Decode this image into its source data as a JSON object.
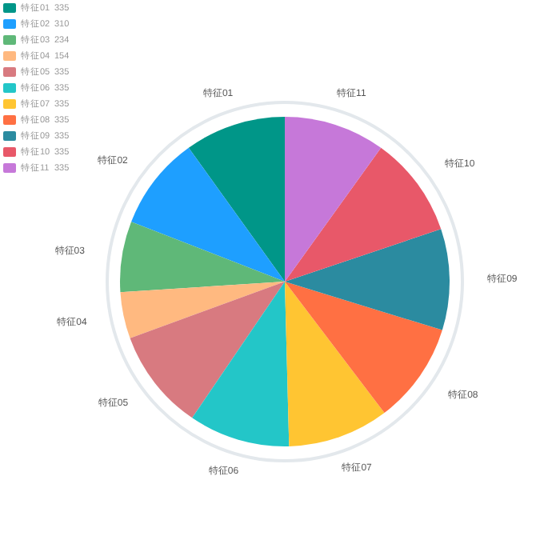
{
  "chart_data": {
    "type": "pie",
    "categories": [
      "特征01",
      "特征02",
      "特征03",
      "特征04",
      "特征05",
      "特征06",
      "特征07",
      "特征08",
      "特征09",
      "特征10",
      "特征11"
    ],
    "values": [
      335,
      310,
      234,
      154,
      335,
      335,
      335,
      335,
      335,
      335,
      335
    ],
    "colors": [
      "#009688",
      "#1e9fff",
      "#5fb878",
      "#ffb980",
      "#d87a80",
      "#23c6c8",
      "#ffc532",
      "#ff7043",
      "#2b8ba0",
      "#e85869",
      "#c678d9"
    ],
    "legend": "top left",
    "data_labels": true
  }
}
